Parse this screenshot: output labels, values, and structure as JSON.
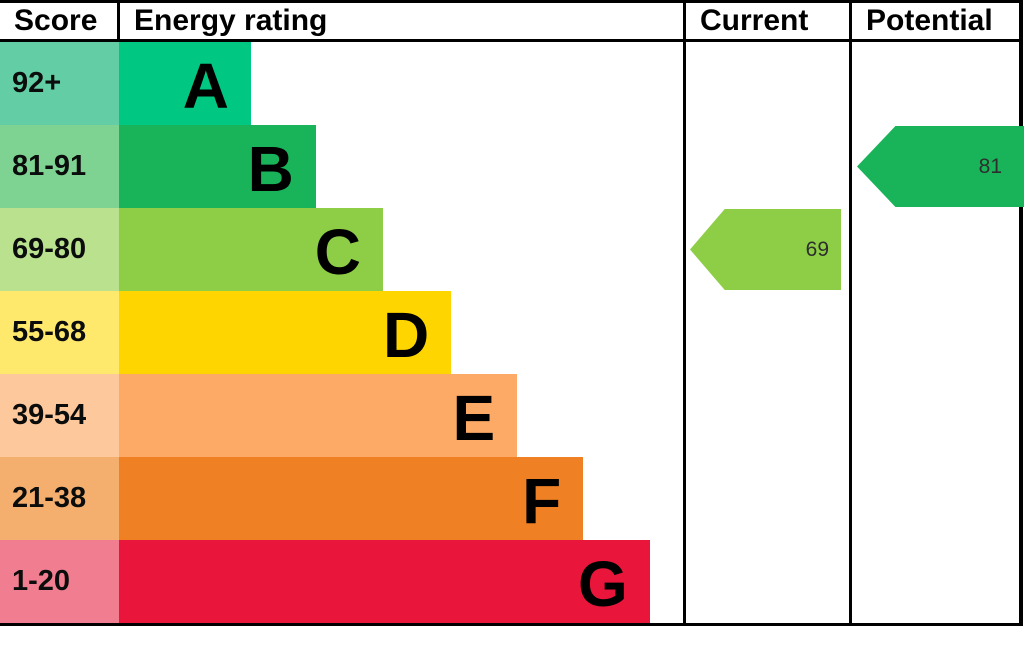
{
  "header": {
    "score": "Score",
    "energy_rating": "Energy rating",
    "current": "Current",
    "potential": "Potential"
  },
  "chart_data": {
    "type": "bar",
    "title": "Energy rating",
    "description": "EPC energy efficiency rating chart",
    "bands": [
      {
        "score": "92+",
        "letter": "A",
        "bar_color": "#00c781",
        "score_color": "#63cda5",
        "bar_width_pct": 23.4
      },
      {
        "score": "81-91",
        "letter": "B",
        "bar_color": "#19b459",
        "score_color": "#7fd392",
        "bar_width_pct": 34.9
      },
      {
        "score": "69-80",
        "letter": "C",
        "bar_color": "#8dce46",
        "score_color": "#b9e18e",
        "bar_width_pct": 46.8
      },
      {
        "score": "55-68",
        "letter": "D",
        "bar_color": "#ffd500",
        "score_color": "#ffe96d",
        "bar_width_pct": 58.9
      },
      {
        "score": "39-54",
        "letter": "E",
        "bar_color": "#fcaa65",
        "score_color": "#fdc99c",
        "bar_width_pct": 70.6
      },
      {
        "score": "21-38",
        "letter": "F",
        "bar_color": "#ef8023",
        "score_color": "#f4ae6e",
        "bar_width_pct": 82.3
      },
      {
        "score": "1-20",
        "letter": "G",
        "bar_color": "#e9153b",
        "score_color": "#f17e90",
        "bar_width_pct": 94.1
      }
    ],
    "current": {
      "value": 69,
      "band_letter": "C",
      "band_index": 2,
      "arrow_color": "#8dce46"
    },
    "potential": {
      "value": 81,
      "band_letter": "B",
      "band_index": 1,
      "arrow_color": "#19b459"
    }
  }
}
